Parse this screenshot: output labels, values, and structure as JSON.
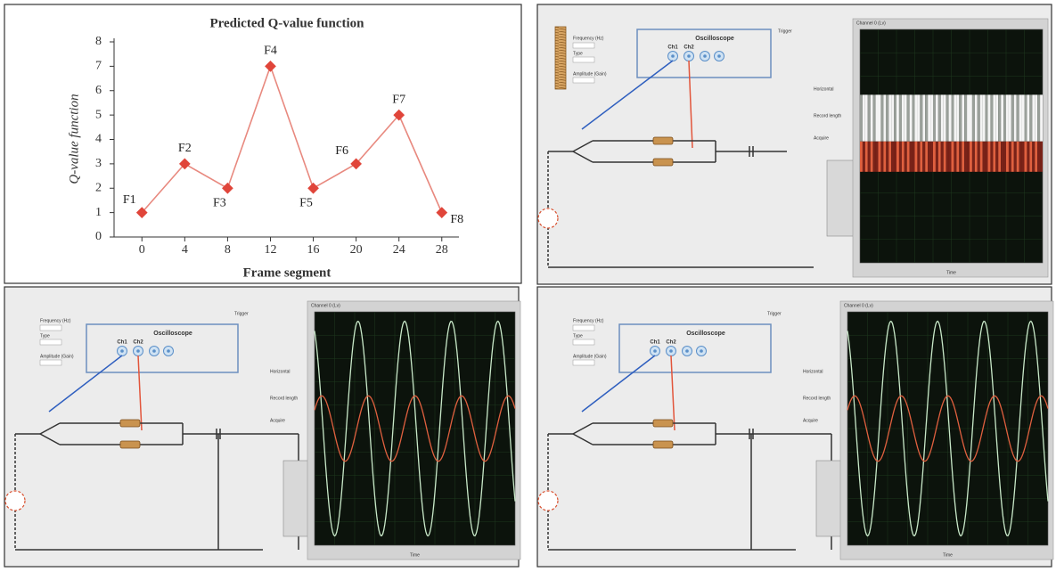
{
  "chart_data": {
    "type": "line",
    "title": "Predicted Q-value function",
    "x_label": "Frame segment",
    "y_label": "Q-value function",
    "x": [
      0,
      4,
      8,
      12,
      16,
      20,
      24,
      28
    ],
    "values": [
      1,
      3,
      2,
      7,
      2,
      3,
      5,
      1
    ],
    "point_labels": [
      "F1",
      "F2",
      "F3",
      "F4",
      "F5",
      "F6",
      "F7",
      "F8"
    ],
    "color": "#e0453a",
    "line_color": "#e8897f",
    "xlim": [
      -2.6,
      29.6
    ],
    "xticks": [
      0,
      4,
      8,
      12,
      16,
      20,
      24,
      28
    ],
    "ylim": [
      0,
      8
    ],
    "yticks": [
      0,
      1,
      2,
      3,
      4,
      5,
      6,
      7,
      8
    ]
  },
  "panels": [
    {
      "oscilloscope": "Oscilloscope",
      "ch1": "Ch1",
      "ch2": "Ch2",
      "frequency": "Frequency (Hz)",
      "type": "Type",
      "amplitude": "Amplitude (Gain)",
      "trigger": "Trigger",
      "channel": "Channel 0 (Lv)",
      "horizontal": "Horizontal",
      "record": "Record length",
      "acquire": "Acquire",
      "time": "Time"
    },
    {
      "oscilloscope": "Oscilloscope",
      "ch1": "Ch1",
      "ch2": "Ch2",
      "frequency": "Frequency (Hz)",
      "type": "Type",
      "amplitude": "Amplitude (Gain)",
      "trigger": "Trigger",
      "channel": "Channel 0 (Lv)",
      "horizontal": "Horizontal",
      "record": "Record length",
      "acquire": "Acquire",
      "time": "Time"
    },
    {
      "oscilloscope": "Oscilloscope",
      "ch1": "Ch1",
      "ch2": "Ch2",
      "frequency": "Frequency (Hz)",
      "type": "Type",
      "amplitude": "Amplitude (Gain)",
      "trigger": "Trigger",
      "channel": "Channel 0 (Lv)",
      "horizontal": "Horizontal",
      "record": "Record length",
      "acquire": "Acquire",
      "time": "Time"
    }
  ]
}
